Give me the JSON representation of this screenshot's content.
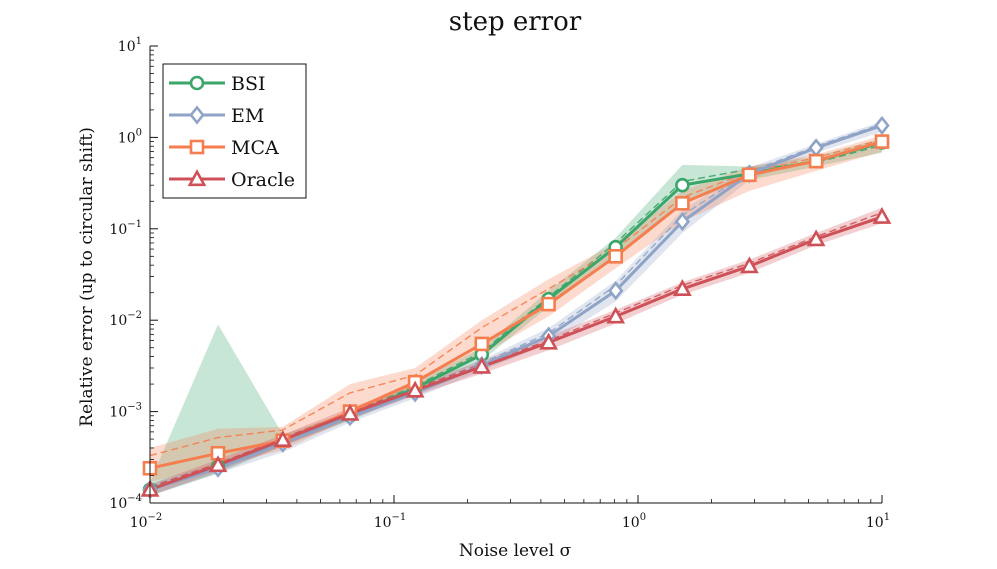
{
  "chart_data": {
    "type": "line",
    "title": "step error",
    "xlabel": "Noise level σ",
    "ylabel": "Relative error (up to circular shift)",
    "xscale": "log",
    "yscale": "log",
    "xlim": [
      0.01,
      10
    ],
    "ylim": [
      0.0001,
      10
    ],
    "xticks": [
      {
        "value": 0.01,
        "base": "10",
        "exp": "−2"
      },
      {
        "value": 0.1,
        "base": "10",
        "exp": "−1"
      },
      {
        "value": 1,
        "base": "10",
        "exp": "0"
      },
      {
        "value": 10,
        "base": "10",
        "exp": "1"
      }
    ],
    "yticks": [
      {
        "value": 0.0001,
        "base": "10",
        "exp": "−4"
      },
      {
        "value": 0.001,
        "base": "10",
        "exp": "−3"
      },
      {
        "value": 0.01,
        "base": "10",
        "exp": "−2"
      },
      {
        "value": 0.1,
        "base": "10",
        "exp": "−1"
      },
      {
        "value": 1,
        "base": "10",
        "exp": "0"
      },
      {
        "value": 10,
        "base": "10",
        "exp": "1"
      }
    ],
    "legend_position": "top-left",
    "x": [
      0.01,
      0.0193,
      0.0373,
      0.072,
      0.139,
      0.268,
      0.518,
      1.0,
      1.93,
      3.73,
      7.2,
      13.9
    ],
    "series": [
      {
        "name": "BSI",
        "color": "#3aa66a",
        "marker": "circle",
        "x": [
          0.01,
          0.019,
          0.035,
          0.066,
          0.122,
          0.229,
          0.43,
          0.81,
          1.52,
          2.86,
          5.37,
          10.0
        ],
        "values": [
          0.00014,
          0.00025,
          0.00048,
          0.0009,
          0.0018,
          0.0042,
          0.017,
          0.063,
          0.3,
          0.4,
          0.55,
          0.88
        ],
        "dashed": [
          0.00015,
          0.00026,
          0.0005,
          0.00095,
          0.0019,
          0.0045,
          0.018,
          0.07,
          0.33,
          0.45,
          0.53,
          0.82
        ],
        "band_low": [
          0.00012,
          0.00021,
          0.00042,
          0.0008,
          0.0016,
          0.0036,
          0.014,
          0.05,
          0.2,
          0.34,
          0.48,
          0.68
        ],
        "band_high": [
          0.00017,
          0.009,
          0.00056,
          0.001,
          0.0021,
          0.005,
          0.021,
          0.08,
          0.5,
          0.48,
          0.62,
          0.98
        ]
      },
      {
        "name": "EM",
        "color": "#8ea3c6",
        "marker": "diamond",
        "x": [
          0.01,
          0.019,
          0.035,
          0.066,
          0.122,
          0.229,
          0.43,
          0.81,
          1.52,
          2.86,
          5.37,
          10.0
        ],
        "values": [
          0.00014,
          0.00024,
          0.00045,
          0.00088,
          0.0016,
          0.0032,
          0.0067,
          0.021,
          0.12,
          0.4,
          0.77,
          1.35
        ],
        "dashed": [
          0.00015,
          0.00025,
          0.00047,
          0.00092,
          0.0017,
          0.0034,
          0.0072,
          0.024,
          0.14,
          0.42,
          0.8,
          1.4
        ],
        "band_low": [
          0.00012,
          0.00021,
          0.00036,
          0.00076,
          0.0014,
          0.0028,
          0.0055,
          0.016,
          0.09,
          0.34,
          0.68,
          1.15
        ],
        "band_high": [
          0.00016,
          0.00028,
          0.00052,
          0.001,
          0.0018,
          0.0037,
          0.0082,
          0.027,
          0.16,
          0.47,
          0.85,
          1.5
        ]
      },
      {
        "name": "MCA",
        "color": "#f57d4e",
        "marker": "square",
        "x": [
          0.01,
          0.019,
          0.035,
          0.066,
          0.122,
          0.229,
          0.43,
          0.81,
          1.52,
          2.86,
          5.37,
          10.0
        ],
        "values": [
          0.00024,
          0.00035,
          0.00048,
          0.001,
          0.0021,
          0.0055,
          0.015,
          0.05,
          0.19,
          0.39,
          0.55,
          0.9
        ],
        "dashed": [
          0.00033,
          0.00052,
          0.00063,
          0.0016,
          0.0025,
          0.0083,
          0.022,
          0.06,
          0.22,
          0.42,
          0.6,
          0.95
        ],
        "band_low": [
          0.00017,
          0.00025,
          0.00038,
          0.00084,
          0.0018,
          0.0042,
          0.011,
          0.037,
          0.12,
          0.26,
          0.43,
          0.7
        ],
        "band_high": [
          0.0004,
          0.00065,
          0.00068,
          0.002,
          0.003,
          0.01,
          0.028,
          0.07,
          0.26,
          0.48,
          0.65,
          1.05
        ]
      },
      {
        "name": "Oracle",
        "color": "#cf5158",
        "marker": "triangle",
        "x": [
          0.01,
          0.019,
          0.035,
          0.066,
          0.122,
          0.229,
          0.43,
          0.81,
          1.52,
          2.86,
          5.37,
          10.0
        ],
        "values": [
          0.00014,
          0.00026,
          0.00049,
          0.00095,
          0.0017,
          0.0031,
          0.0057,
          0.011,
          0.022,
          0.039,
          0.077,
          0.135
        ],
        "dashed": [
          0.00015,
          0.00027,
          0.00051,
          0.001,
          0.0018,
          0.0033,
          0.006,
          0.012,
          0.024,
          0.042,
          0.082,
          0.15
        ],
        "band_low": [
          0.00012,
          0.00022,
          0.00042,
          0.00082,
          0.0015,
          0.0026,
          0.0047,
          0.0092,
          0.019,
          0.033,
          0.066,
          0.115
        ],
        "band_high": [
          0.00016,
          0.0003,
          0.00056,
          0.0011,
          0.002,
          0.0036,
          0.0067,
          0.013,
          0.026,
          0.046,
          0.09,
          0.17
        ]
      }
    ]
  }
}
